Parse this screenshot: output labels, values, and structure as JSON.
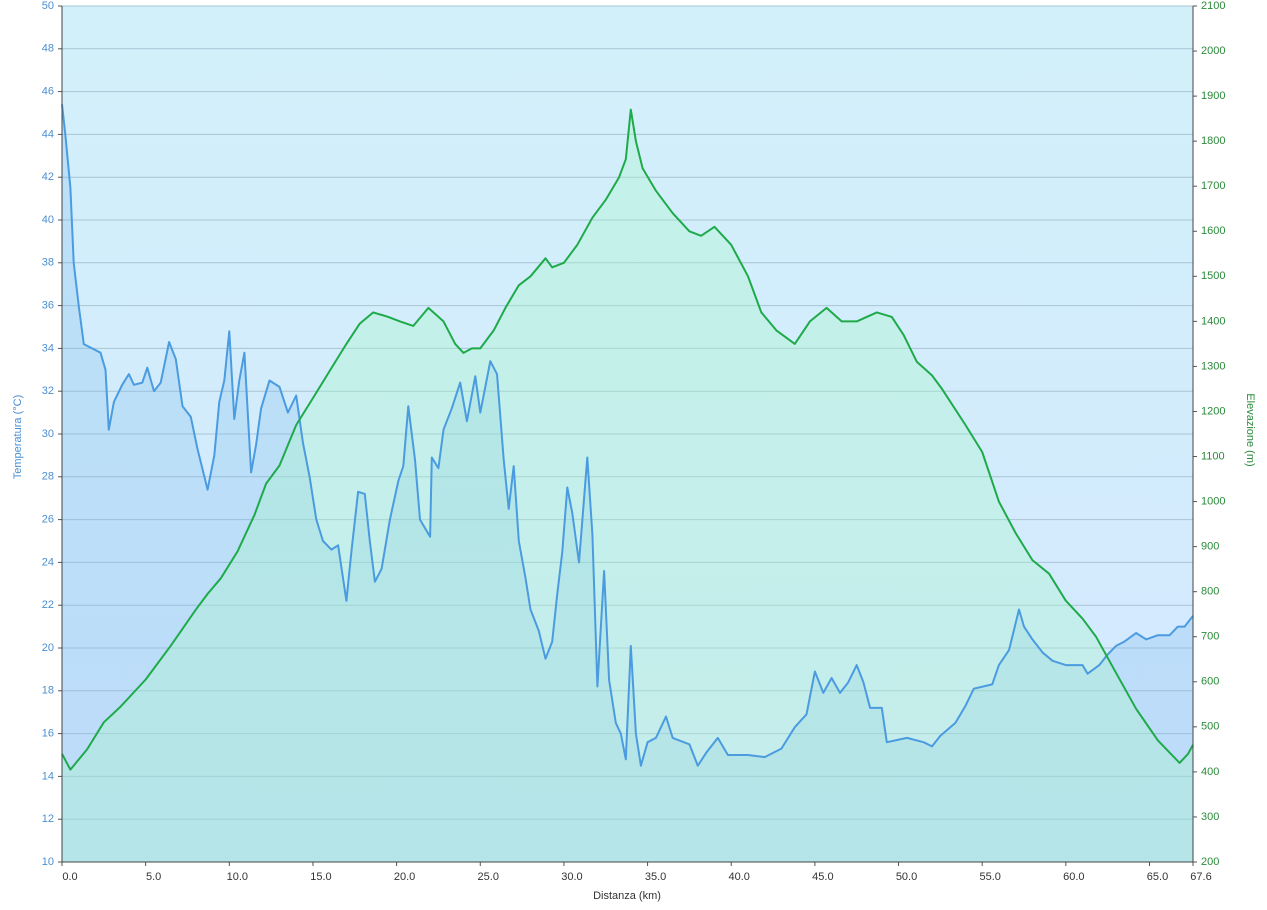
{
  "chart_data": {
    "type": "line",
    "xlabel": "Distanza  (km)",
    "ylabel": "Temperatura (°C)",
    "y2label": "Elevazione (m)",
    "xlim": [
      0,
      67.6
    ],
    "xticks": [
      {
        "value": 0,
        "label": "0.0"
      },
      {
        "value": 5,
        "label": "5.0"
      },
      {
        "value": 10,
        "label": "10.0"
      },
      {
        "value": 15,
        "label": "15.0"
      },
      {
        "value": 20,
        "label": "20.0"
      },
      {
        "value": 25,
        "label": "25.0"
      },
      {
        "value": 30,
        "label": "30.0"
      },
      {
        "value": 35,
        "label": "35.0"
      },
      {
        "value": 40,
        "label": "40.0"
      },
      {
        "value": 45,
        "label": "45.0"
      },
      {
        "value": 50,
        "label": "50.0"
      },
      {
        "value": 55,
        "label": "55.0"
      },
      {
        "value": 60,
        "label": "60.0"
      },
      {
        "value": 65,
        "label": "65.0"
      },
      67.6
    ],
    "ylim": [
      10,
      50
    ],
    "yticks": [
      10,
      12,
      14,
      16,
      18,
      20,
      22,
      24,
      26,
      28,
      30,
      32,
      34,
      36,
      38,
      40,
      42,
      44,
      46,
      48,
      50
    ],
    "y2lim": [
      200,
      2100
    ],
    "y2ticks": [
      200,
      300,
      400,
      500,
      600,
      700,
      800,
      900,
      1000,
      1100,
      1200,
      1300,
      1400,
      1500,
      1600,
      1700,
      1800,
      1900,
      2000,
      2100
    ],
    "grid": true,
    "series": [
      {
        "color": "#4a9be0",
        "axis": "y",
        "x": [
          0,
          0.2,
          0.5,
          0.7,
          1,
          1.3,
          1.8,
          2.3,
          2.6,
          2.8,
          3.1,
          3.6,
          4,
          4.3,
          4.8,
          5.1,
          5.5,
          5.9,
          6.4,
          6.8,
          7.2,
          7.7,
          8.1,
          8.7,
          9.1,
          9.4,
          9.7,
          10,
          10.3,
          10.6,
          10.9,
          11.3,
          11.6,
          11.9,
          12.4,
          13,
          13.5,
          14,
          14.4,
          14.8,
          15.2,
          15.6,
          16.1,
          16.5,
          17,
          17.3,
          17.7,
          18.1,
          18.4,
          18.7,
          19.1,
          19.6,
          20.1,
          20.4,
          20.7,
          21.1,
          21.4,
          22,
          22.1,
          22.5,
          22.8,
          23.3,
          23.8,
          24.2,
          24.7,
          25,
          25.6,
          26,
          26.4,
          26.7,
          27,
          27.3,
          27.7,
          28,
          28.5,
          28.9,
          29.3,
          29.6,
          29.9,
          30.2,
          30.5,
          30.9,
          31.4,
          31.7,
          32,
          32.4,
          32.7,
          33.1,
          33.4,
          33.7,
          34,
          34.3,
          34.6,
          35,
          35.5,
          36.1,
          36.5,
          37.5,
          38,
          38.5,
          39.2,
          39.8,
          41,
          42,
          43,
          43.8,
          44.5,
          45,
          45.5,
          46,
          46.5,
          47,
          47.5,
          47.9,
          48.3,
          49,
          49.3,
          50.5,
          51.5,
          52,
          52.5,
          53.4,
          54,
          54.5,
          55.6,
          56,
          56.6,
          57.2,
          57.5,
          58,
          58.6,
          59.2,
          60,
          61,
          61.3,
          62,
          62.5,
          63,
          63.5,
          64.2,
          64.8,
          65.5,
          66.2,
          66.7,
          67.1,
          67.6
        ],
        "values": [
          45.4,
          44,
          41.5,
          38,
          36,
          34.2,
          34,
          33.8,
          33,
          30.2,
          31.5,
          32.3,
          32.8,
          32.3,
          32.4,
          33.1,
          32,
          32.4,
          34.3,
          33.5,
          31.3,
          30.8,
          29.3,
          27.4,
          29,
          31.5,
          32.5,
          34.8,
          30.7,
          32.5,
          33.8,
          28.2,
          29.5,
          31.2,
          32.5,
          32.2,
          31,
          31.8,
          29.6,
          28,
          26,
          25,
          24.6,
          24.8,
          22.2,
          24.5,
          27.3,
          27.2,
          25,
          23.1,
          23.7,
          26,
          27.8,
          28.5,
          31.3,
          28.8,
          26,
          25.2,
          28.9,
          28.4,
          30.2,
          31.2,
          32.4,
          30.6,
          32.7,
          31,
          33.4,
          32.8,
          28.8,
          26.5,
          28.5,
          25,
          23.3,
          21.8,
          20.8,
          19.5,
          20.3,
          22.5,
          24.5,
          27.5,
          26.3,
          24,
          28.9,
          25.3,
          18.2,
          23.6,
          18.5,
          16.5,
          16,
          14.8,
          20.1,
          16,
          14.5,
          15.6,
          15.8,
          16.8,
          15.8,
          15.5,
          14.5,
          15.1,
          15.8,
          15,
          15,
          14.9,
          15.3,
          16.3,
          16.9,
          18.9,
          17.9,
          18.6,
          17.9,
          18.4,
          19.2,
          18.4,
          17.2,
          17.2,
          15.6,
          15.8,
          15.6,
          15.4,
          15.9,
          16.5,
          17.3,
          18.1,
          18.3,
          19.2,
          19.9,
          21.8,
          21,
          20.4,
          19.8,
          19.4,
          19.2,
          19.2,
          18.8,
          19.2,
          19.7,
          20.1,
          20.3,
          20.7,
          20.4,
          20.6,
          20.6,
          21,
          21,
          21.5
        ]
      },
      {
        "color": "#1faa4a",
        "axis": "y2",
        "x": [
          0,
          0.5,
          1.5,
          2.5,
          3.5,
          5,
          6.5,
          8,
          8.7,
          9.5,
          10.5,
          11.5,
          12.2,
          13,
          14,
          15,
          16,
          17,
          17.8,
          18.6,
          19.5,
          20.2,
          21,
          21.9,
          22.8,
          23.5,
          24,
          24.5,
          25,
          25.8,
          26.5,
          27.3,
          28,
          28.9,
          29.3,
          30,
          30.8,
          31.7,
          32.5,
          33.3,
          33.7,
          34,
          34.3,
          34.7,
          35.5,
          36.5,
          37.5,
          38.2,
          39,
          40,
          41,
          41.8,
          42.7,
          43.8,
          44.7,
          45.7,
          46.6,
          47.5,
          48.7,
          49.6,
          50.3,
          51.1,
          52,
          52.6,
          54,
          55,
          56,
          57,
          58,
          59,
          60,
          61,
          61.8,
          63,
          64.2,
          65.5,
          66.8,
          67.3,
          67.6
        ],
        "values": [
          440,
          405,
          450,
          510,
          545,
          605,
          680,
          760,
          795,
          830,
          890,
          970,
          1040,
          1080,
          1170,
          1230,
          1290,
          1350,
          1395,
          1420,
          1410,
          1400,
          1390,
          1430,
          1400,
          1350,
          1330,
          1340,
          1340,
          1380,
          1430,
          1480,
          1500,
          1540,
          1520,
          1530,
          1570,
          1630,
          1670,
          1720,
          1760,
          1870,
          1800,
          1740,
          1690,
          1640,
          1600,
          1590,
          1610,
          1570,
          1500,
          1420,
          1380,
          1350,
          1400,
          1430,
          1400,
          1400,
          1420,
          1410,
          1370,
          1310,
          1280,
          1250,
          1170,
          1110,
          1000,
          930,
          870,
          840,
          780,
          740,
          700,
          620,
          540,
          470,
          420,
          440,
          460
        ]
      }
    ]
  }
}
